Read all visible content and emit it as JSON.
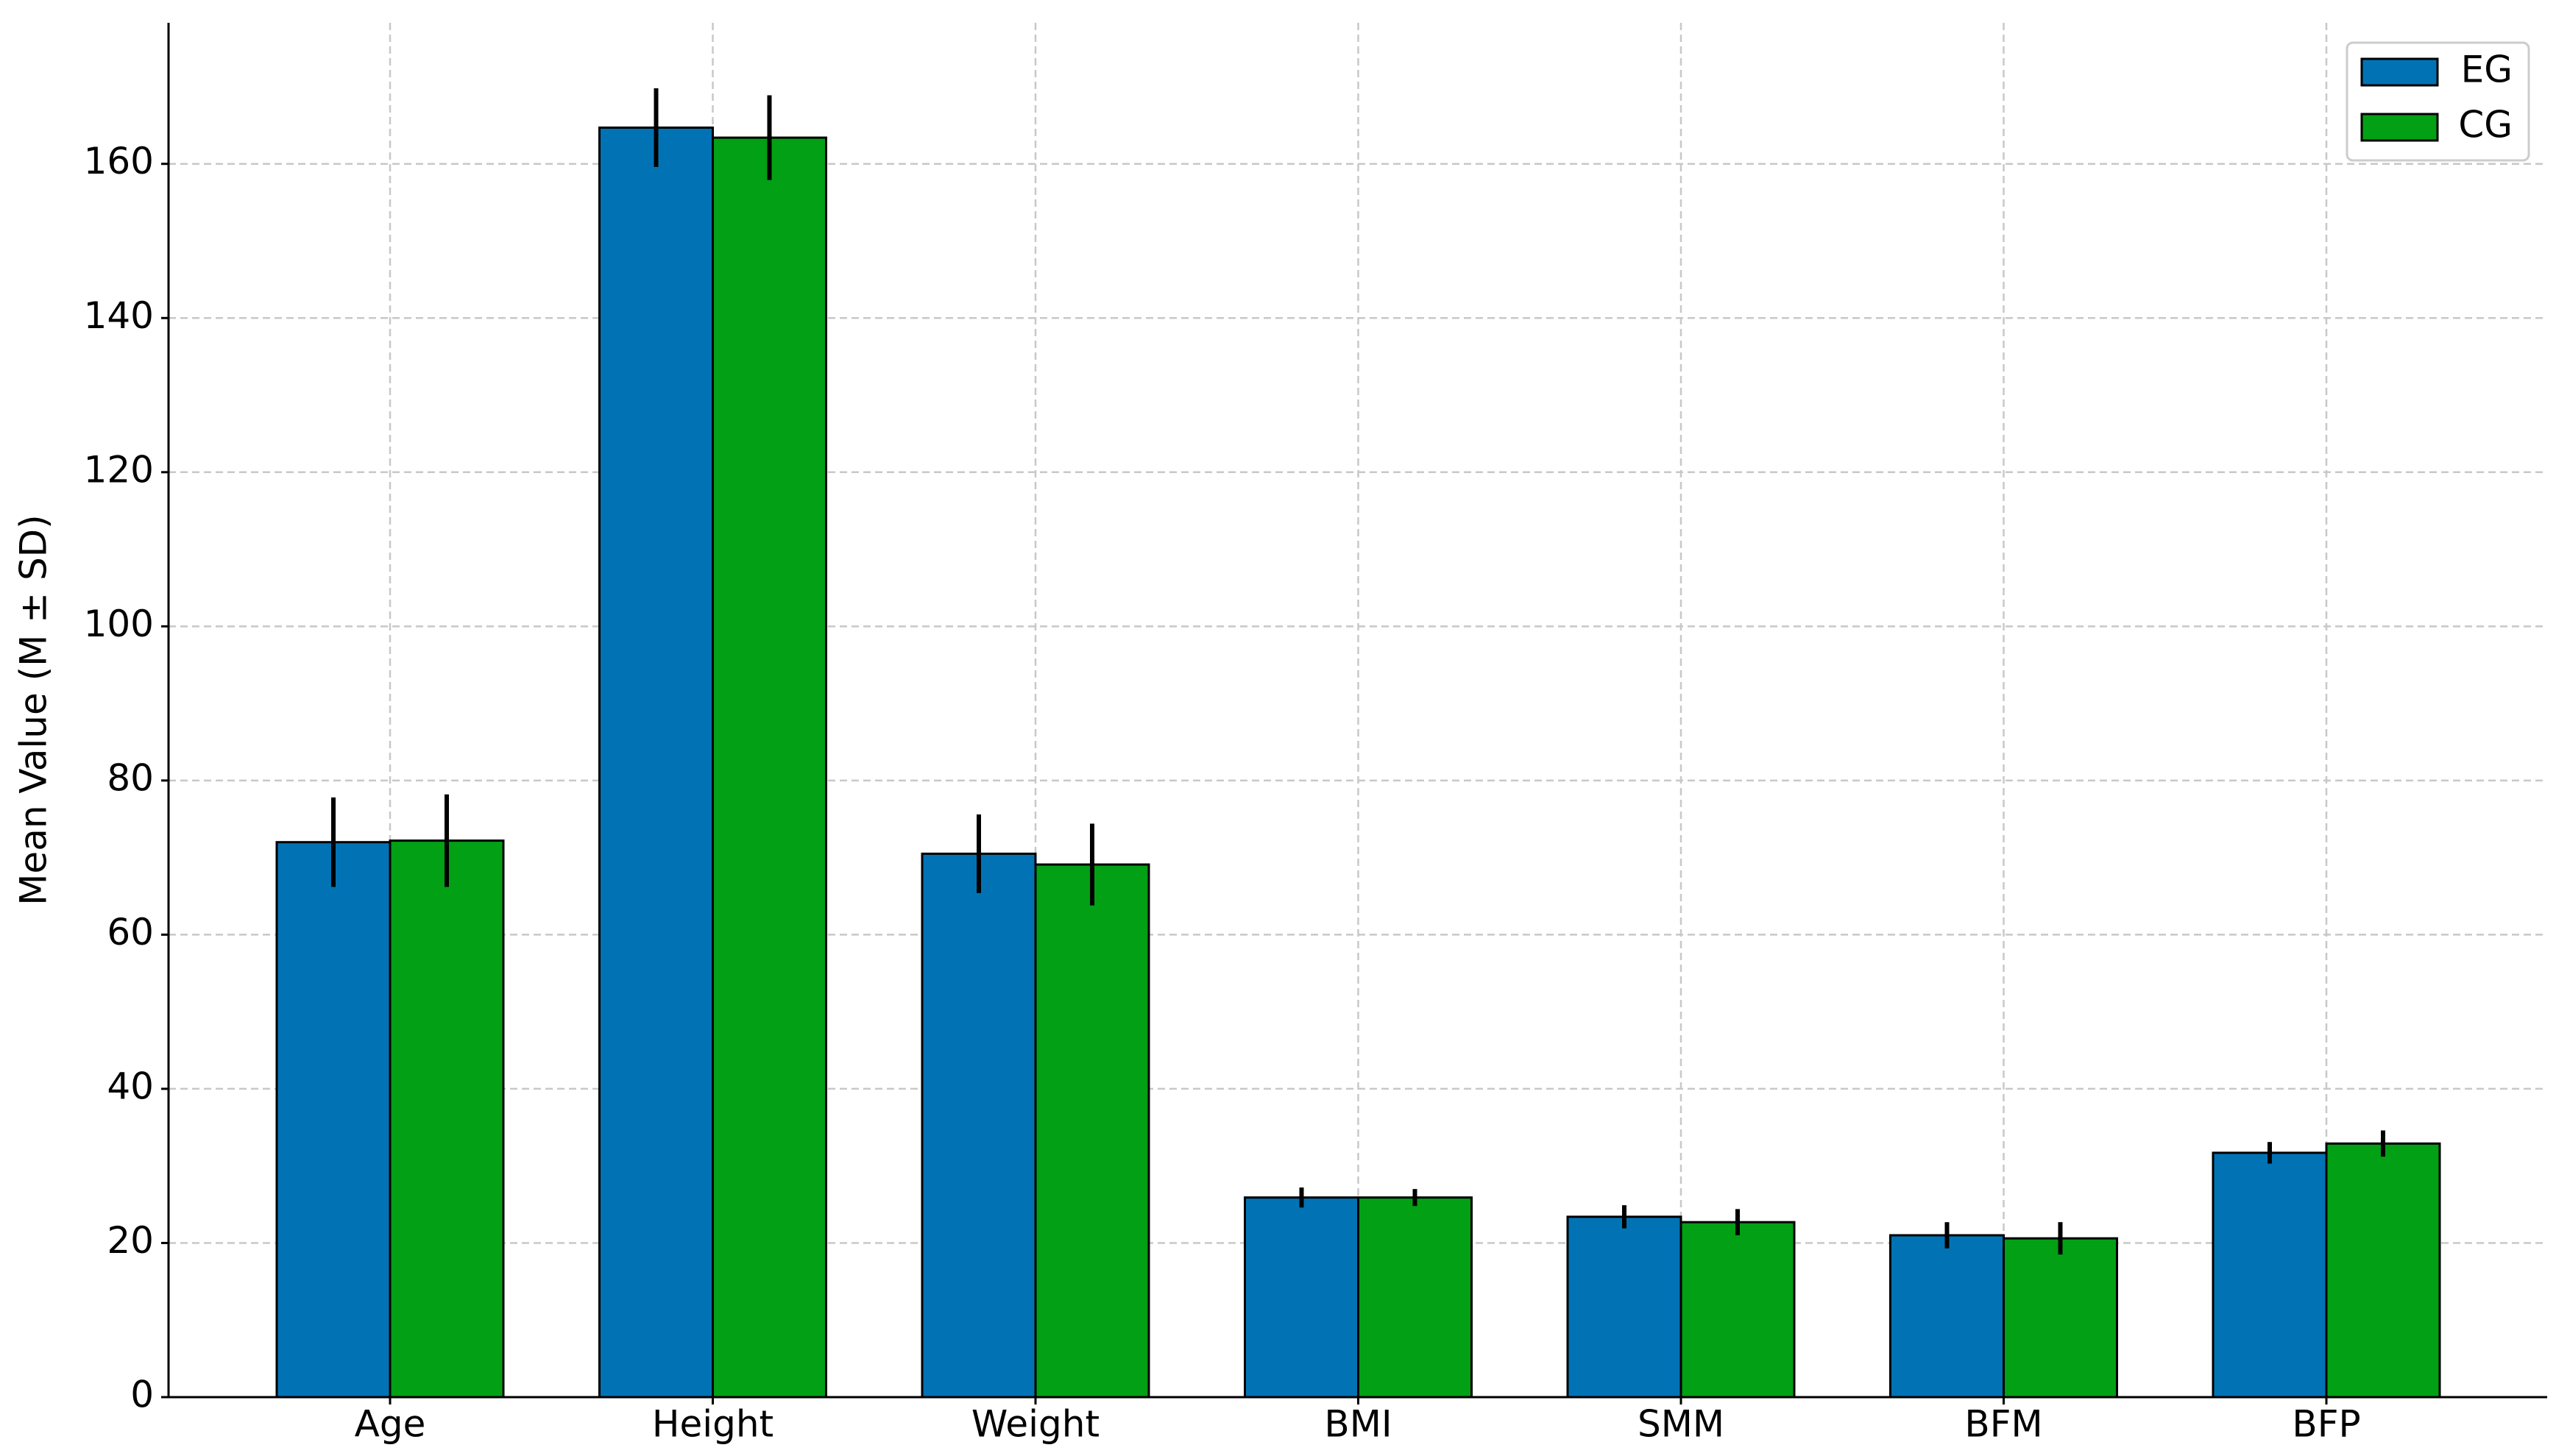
{
  "chart_data": {
    "type": "bar",
    "y_label": "Mean Value (M ± SD)",
    "categories": [
      "Age",
      "Height",
      "Weight",
      "BMI",
      "SMM",
      "BFM",
      "BFP"
    ],
    "series": [
      {
        "name": "EG",
        "color": "#0173b5",
        "values": [
          72.0,
          164.7,
          70.5,
          25.9,
          23.4,
          21.0,
          31.7
        ],
        "errors": [
          5.8,
          5.1,
          5.1,
          1.3,
          1.5,
          1.7,
          1.4
        ]
      },
      {
        "name": "CG",
        "color": "#02a014",
        "values": [
          72.2,
          163.4,
          69.1,
          25.9,
          22.7,
          20.6,
          32.9
        ],
        "errors": [
          6.0,
          5.5,
          5.3,
          1.1,
          1.7,
          2.1,
          1.7
        ]
      }
    ],
    "ylim": [
      0,
      178.3
    ],
    "yticks": [
      0,
      20,
      40,
      60,
      80,
      100,
      120,
      140,
      160
    ],
    "grid": true,
    "legend": "upper right"
  }
}
